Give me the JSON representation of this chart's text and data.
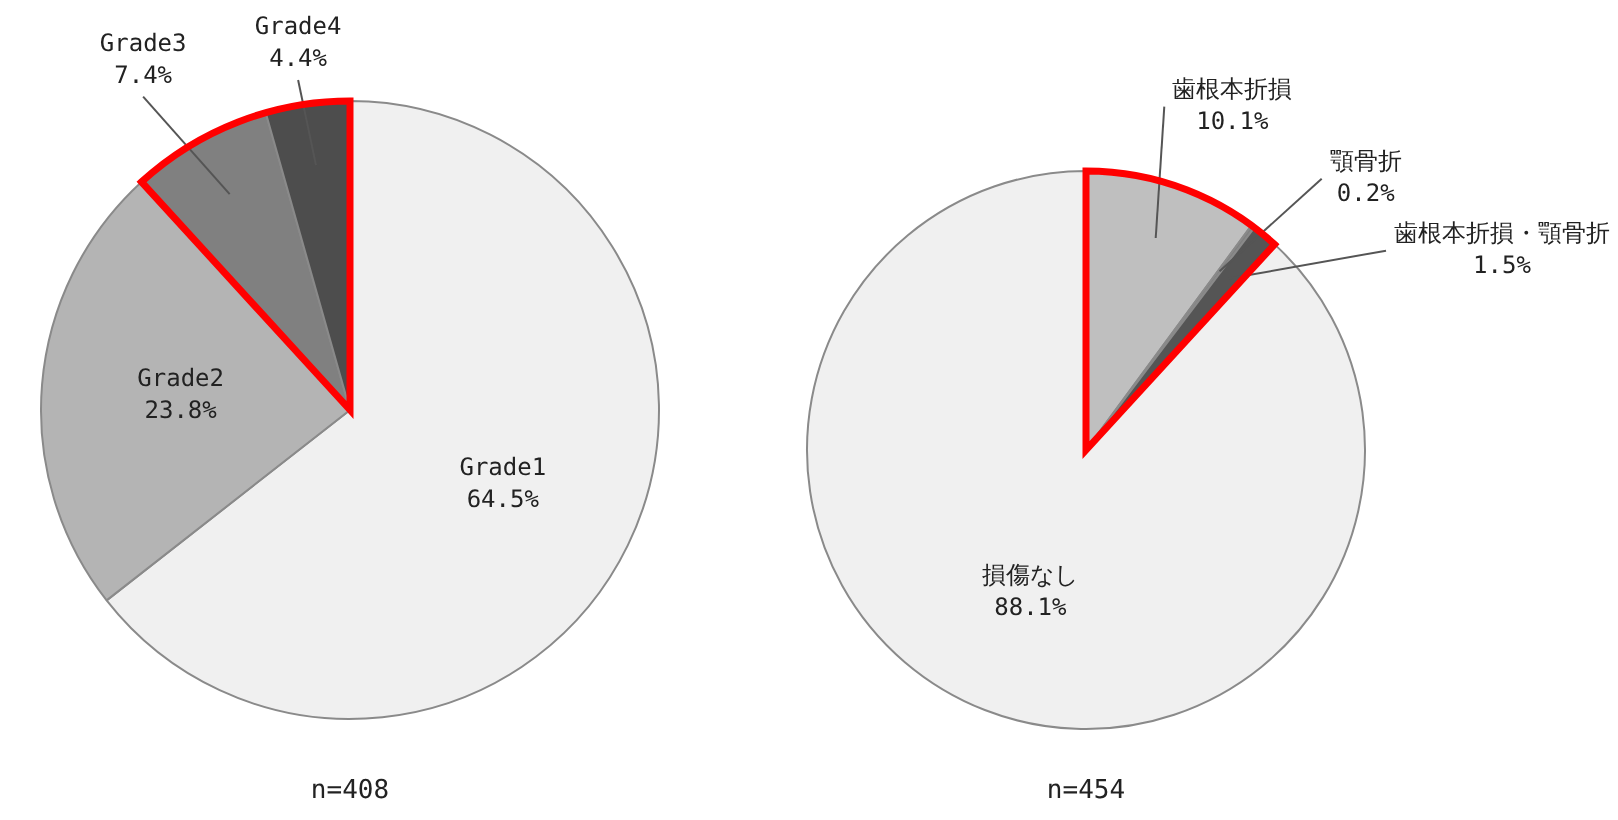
{
  "chart_data": [
    {
      "type": "pie",
      "categories": [
        "Grade1",
        "Grade2",
        "Grade3",
        "Grade4"
      ],
      "values": [
        64.5,
        23.8,
        7.4,
        4.4
      ],
      "colors": [
        "#f0f0f0",
        "#b4b4b4",
        "#808080",
        "#4d4d4d"
      ],
      "value_labels": [
        "64.5%",
        "23.8%",
        "7.4%",
        "4.4%"
      ],
      "annotations": [
        "n=408"
      ],
      "legend": false
    },
    {
      "type": "pie",
      "categories": [
        "歯根本折損",
        "顎骨折",
        "歯根本折損・顎骨折",
        "損傷なし"
      ],
      "values": [
        10.1,
        0.2,
        1.5,
        88.1
      ],
      "colors": [
        "#bfbfbf",
        "#808080",
        "#555555",
        "#f0f0f0"
      ],
      "value_labels": [
        "10.1%",
        "0.2%",
        "1.5%",
        "88.1%"
      ],
      "annotations": [
        "n=454"
      ],
      "legend": false
    }
  ]
}
